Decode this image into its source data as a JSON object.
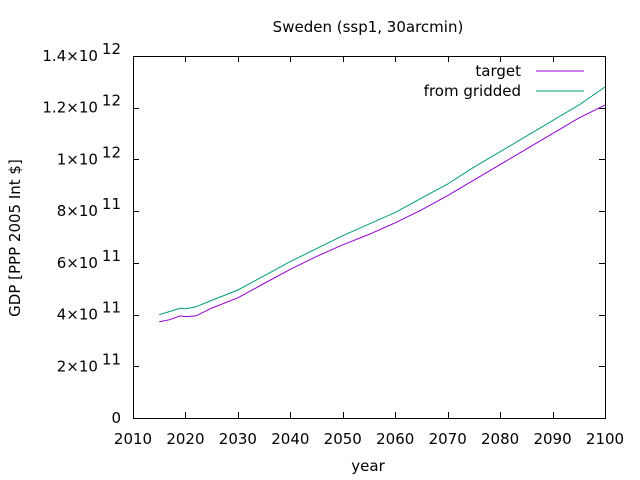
{
  "chart_data": {
    "type": "line",
    "title": "Sweden (ssp1, 30arcmin)",
    "xlabel": "year",
    "ylabel": "GDP [PPP 2005 Int $]",
    "xlim": [
      2010,
      2100
    ],
    "ylim": [
      0,
      1400000000000.0
    ],
    "xticks": [
      2010,
      2020,
      2030,
      2040,
      2050,
      2060,
      2070,
      2080,
      2090,
      2100
    ],
    "yticks": [
      {
        "value": 0,
        "mantissa": "0",
        "exponent": ""
      },
      {
        "value": 200000000000.0,
        "mantissa": "2×10",
        "exponent": "11"
      },
      {
        "value": 400000000000.0,
        "mantissa": "4×10",
        "exponent": "11"
      },
      {
        "value": 600000000000.0,
        "mantissa": "6×10",
        "exponent": "11"
      },
      {
        "value": 800000000000.0,
        "mantissa": "8×10",
        "exponent": "11"
      },
      {
        "value": 1000000000000.0,
        "mantissa": "1×10",
        "exponent": "12"
      },
      {
        "value": 1200000000000.0,
        "mantissa": "1.2×10",
        "exponent": "12"
      },
      {
        "value": 1400000000000.0,
        "mantissa": "1.4×10",
        "exponent": "12"
      }
    ],
    "grid": false,
    "legend_position": "top-right",
    "series": [
      {
        "name": "target",
        "color": "#9400d3",
        "x": [
          2015,
          2017,
          2019,
          2020,
          2022,
          2025,
          2030,
          2035,
          2040,
          2045,
          2050,
          2055,
          2060,
          2065,
          2070,
          2075,
          2080,
          2085,
          2090,
          2095,
          2100
        ],
        "y": [
          372000000000.0,
          380000000000.0,
          395000000000.0,
          392000000000.0,
          395000000000.0,
          425000000000.0,
          465000000000.0,
          520000000000.0,
          575000000000.0,
          625000000000.0,
          670000000000.0,
          710000000000.0,
          755000000000.0,
          805000000000.0,
          860000000000.0,
          920000000000.0,
          980000000000.0,
          1040000000000.0,
          1100000000000.0,
          1160000000000.0,
          1210000000000.0
        ]
      },
      {
        "name": "from gridded",
        "color": "#009e73",
        "x": [
          2015,
          2017,
          2019,
          2020,
          2022,
          2025,
          2030,
          2035,
          2040,
          2045,
          2050,
          2055,
          2060,
          2065,
          2070,
          2075,
          2080,
          2085,
          2090,
          2095,
          2100
        ],
        "y": [
          400000000000.0,
          412000000000.0,
          425000000000.0,
          422000000000.0,
          430000000000.0,
          455000000000.0,
          495000000000.0,
          550000000000.0,
          605000000000.0,
          655000000000.0,
          705000000000.0,
          750000000000.0,
          795000000000.0,
          850000000000.0,
          905000000000.0,
          970000000000.0,
          1030000000000.0,
          1090000000000.0,
          1150000000000.0,
          1210000000000.0,
          1280000000000.0
        ]
      }
    ]
  }
}
